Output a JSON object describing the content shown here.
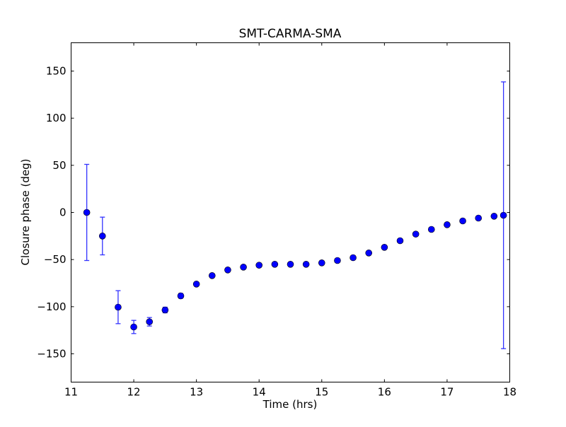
{
  "chart_data": {
    "type": "scatter",
    "title": "SMT-CARMA-SMA",
    "xlabel": "Time (hrs)",
    "ylabel": "Closure phase (deg)",
    "xlim": [
      11,
      18
    ],
    "ylim": [
      -180,
      180
    ],
    "xticks": [
      11,
      12,
      13,
      14,
      15,
      16,
      17,
      18
    ],
    "yticks": [
      -150,
      -100,
      -50,
      0,
      50,
      100,
      150
    ],
    "grid": false,
    "color": "#0000ff",
    "errorbar_color": "#3333ff",
    "x": [
      11.25,
      11.5,
      11.75,
      12.0,
      12.25,
      12.5,
      12.75,
      13.0,
      13.25,
      13.5,
      13.75,
      14.0,
      14.25,
      14.5,
      14.75,
      15.0,
      15.25,
      15.5,
      15.75,
      16.0,
      16.25,
      16.5,
      16.75,
      17.0,
      17.25,
      17.5,
      17.75,
      17.9
    ],
    "y": [
      0,
      -25,
      -100.5,
      -121.5,
      -116,
      -103.5,
      -88.5,
      -76,
      -67,
      -61,
      -58,
      -56,
      -55,
      -55,
      -55,
      -53.5,
      -51,
      -48,
      -43,
      -37,
      -30,
      -23,
      -18,
      -13,
      -9,
      -6,
      -4,
      -3
    ],
    "yerr": [
      51,
      20,
      17.5,
      7,
      4.5,
      3,
      2.5,
      1.5,
      1,
      1,
      1,
      1,
      1,
      1,
      1,
      1,
      1,
      1,
      1,
      1,
      1,
      1,
      1,
      1,
      1,
      1,
      1,
      141.5
    ]
  }
}
